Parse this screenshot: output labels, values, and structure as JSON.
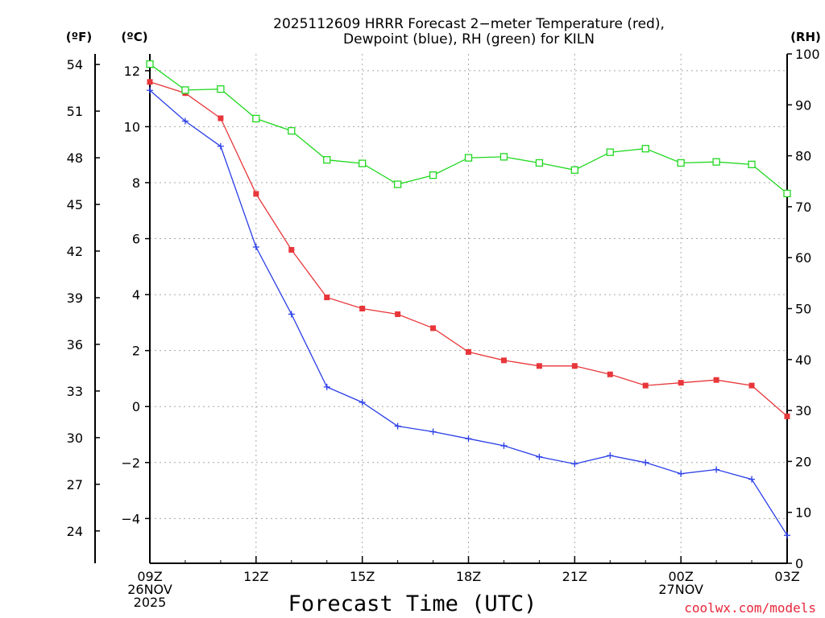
{
  "chart_data": {
    "type": "line",
    "title_line1": "2025112609 HRRR Forecast 2−meter Temperature (red),",
    "title_line2": "Dewpoint (blue), RH (green) for KILN",
    "xlabel": "Forecast Time (UTC)",
    "credit": "coolwx.com/models",
    "units": {
      "left_f": "(ºF)",
      "left_c": "(ºC)",
      "right_rh": "(RH)"
    },
    "hours": [
      0,
      1,
      2,
      3,
      4,
      5,
      6,
      7,
      8,
      9,
      10,
      11,
      12,
      13,
      14,
      15,
      16,
      17,
      18
    ],
    "x_ticks": [
      {
        "hour": 0,
        "lines": [
          "09Z",
          "26NOV",
          "2025"
        ]
      },
      {
        "hour": 3,
        "lines": [
          "12Z"
        ]
      },
      {
        "hour": 6,
        "lines": [
          "15Z"
        ]
      },
      {
        "hour": 9,
        "lines": [
          "18Z"
        ]
      },
      {
        "hour": 12,
        "lines": [
          "21Z"
        ]
      },
      {
        "hour": 15,
        "lines": [
          "00Z",
          "27NOV"
        ]
      },
      {
        "hour": 18,
        "lines": [
          "03Z"
        ]
      }
    ],
    "celsius_axis": {
      "min": -5.6,
      "max": 12.6,
      "ticks": [
        "12",
        "10",
        "8",
        "6",
        "4",
        "2",
        "0",
        "−2",
        "−4"
      ],
      "tick_values": [
        12,
        10,
        8,
        6,
        4,
        2,
        0,
        -2,
        -4
      ]
    },
    "fahrenheit_axis": {
      "ticks": [
        "54",
        "51",
        "48",
        "45",
        "42",
        "39",
        "36",
        "33",
        "30",
        "27",
        "24"
      ],
      "tick_values": [
        54,
        51,
        48,
        45,
        42,
        39,
        36,
        33,
        30,
        27,
        24
      ]
    },
    "rh_axis": {
      "min": 0,
      "max": 100,
      "ticks": [
        "100",
        "90",
        "80",
        "70",
        "60",
        "50",
        "40",
        "30",
        "20",
        "10",
        "0"
      ],
      "tick_values": [
        100,
        90,
        80,
        70,
        60,
        50,
        40,
        30,
        20,
        10,
        0
      ]
    },
    "series": [
      {
        "name": "Temperature",
        "units": "C",
        "color": "#e8363a",
        "marker": "filled-square",
        "values": [
          11.6,
          11.2,
          10.3,
          7.6,
          5.6,
          3.9,
          3.5,
          3.3,
          2.8,
          1.95,
          1.65,
          1.45,
          1.45,
          1.15,
          0.75,
          0.85,
          0.95,
          0.75,
          -0.35
        ]
      },
      {
        "name": "Dewpoint",
        "units": "C",
        "color": "#2a3ee8",
        "marker": "plus",
        "values": [
          11.3,
          10.2,
          9.3,
          5.7,
          3.3,
          0.7,
          0.15,
          -0.7,
          -0.9,
          -1.15,
          -1.4,
          -1.8,
          -2.05,
          -1.75,
          -2.0,
          -2.4,
          -2.25,
          -2.6,
          -4.6
        ]
      },
      {
        "name": "RH",
        "units": "%",
        "color": "#20d820",
        "marker": "open-square",
        "values": [
          98,
          92.9,
          93.1,
          87.3,
          84.9,
          79.2,
          78.5,
          74.4,
          76.2,
          79.6,
          79.8,
          78.6,
          77.2,
          80.7,
          81.4,
          78.6,
          78.8,
          78.3,
          72.6
        ]
      }
    ]
  }
}
